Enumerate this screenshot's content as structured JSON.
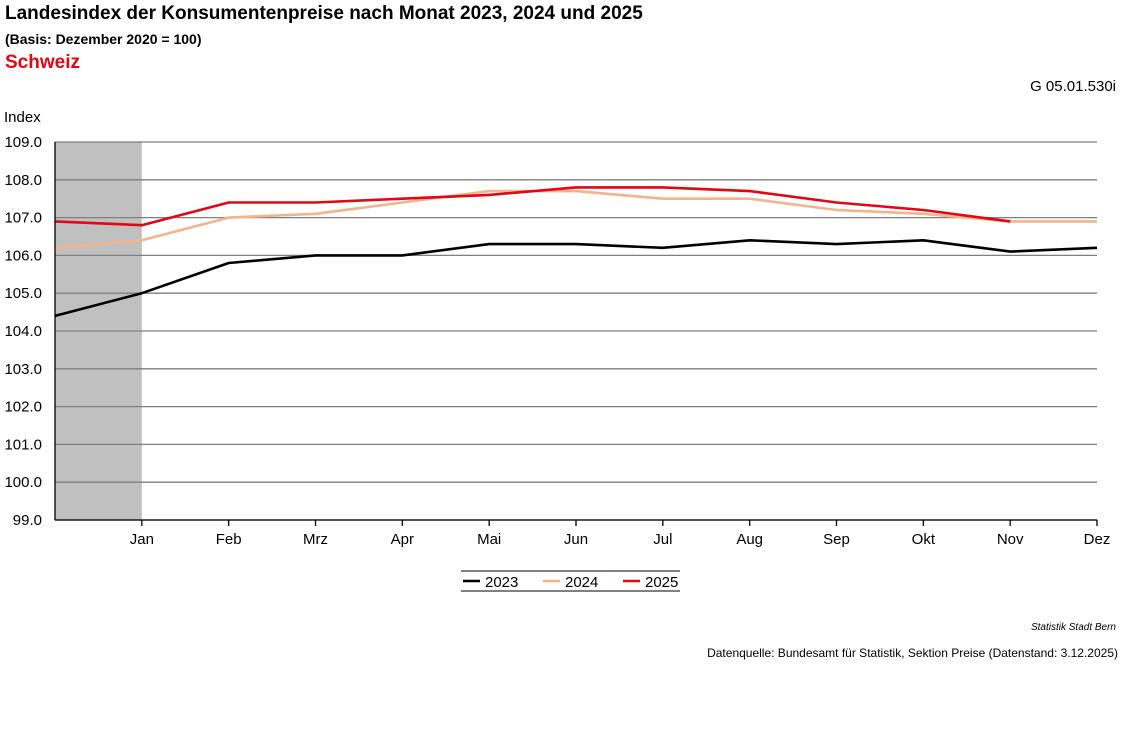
{
  "header": {
    "title": "Landesindex der Konsumentenpreise nach Monat 2023, 2024 und 2025",
    "subtitle": "(Basis: Dezember 2020 = 100)",
    "region": "Schweiz",
    "code": "G 05.01.530i"
  },
  "footer": {
    "org": "Statistik Stadt Bern",
    "source": "Datenquelle: Bundesamt für Statistik, Sektion Preise (Datenstand: 3.12.2025)"
  },
  "chart_data": {
    "type": "line",
    "ylabel": "Index",
    "ylim": [
      99.0,
      109.0
    ],
    "yticks": [
      "99.0",
      "100.0",
      "101.0",
      "102.0",
      "103.0",
      "104.0",
      "105.0",
      "106.0",
      "107.0",
      "108.0",
      "109.0"
    ],
    "categories": [
      "Jan",
      "Feb",
      "Mrz",
      "Apr",
      "Mai",
      "Jun",
      "Jul",
      "Aug",
      "Sep",
      "Okt",
      "Nov",
      "Dez"
    ],
    "grid": true,
    "legend": "bottom",
    "shaded_start": "Dez (Vorjahr) – Jan",
    "series": [
      {
        "name": "2023",
        "color": "#000000",
        "start_value": 104.4,
        "values": [
          105.0,
          105.8,
          106.0,
          106.0,
          106.3,
          106.3,
          106.2,
          106.4,
          106.3,
          106.4,
          106.1,
          106.2
        ]
      },
      {
        "name": "2024",
        "color": "#f2b48c",
        "start_value": 106.2,
        "values": [
          106.4,
          107.0,
          107.1,
          107.4,
          107.7,
          107.7,
          107.5,
          107.5,
          107.2,
          107.1,
          106.9,
          106.9
        ]
      },
      {
        "name": "2025",
        "color": "#e30613",
        "start_value": 106.9,
        "values": [
          106.8,
          107.4,
          107.4,
          107.5,
          107.6,
          107.8,
          107.8,
          107.7,
          107.4,
          107.2,
          106.9,
          null
        ]
      }
    ]
  }
}
